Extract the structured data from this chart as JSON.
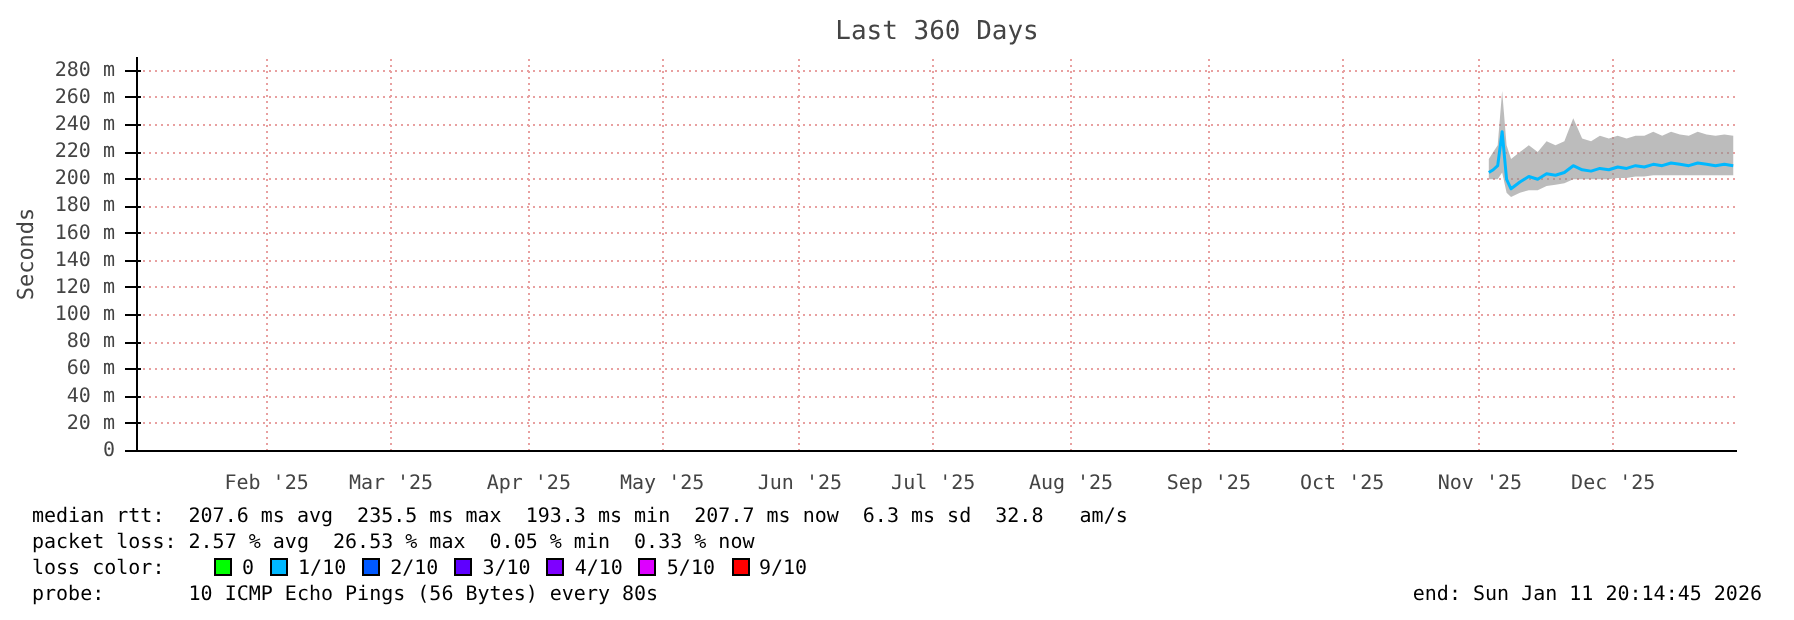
{
  "chart_data": {
    "type": "line",
    "title": "Last 360 Days",
    "ylabel": "Seconds",
    "xlim": [
      "2025-01-16T20:14",
      "2026-01-11T20:14"
    ],
    "xticks": [
      {
        "value": "2025-02-15",
        "label": "Feb '25"
      },
      {
        "value": "2025-03-15",
        "label": "Mar '25"
      },
      {
        "value": "2025-04-15",
        "label": "Apr '25"
      },
      {
        "value": "2025-05-15",
        "label": "May '25"
      },
      {
        "value": "2025-06-15",
        "label": "Jun '25"
      },
      {
        "value": "2025-07-15",
        "label": "Jul '25"
      },
      {
        "value": "2025-08-15",
        "label": "Aug '25"
      },
      {
        "value": "2025-09-15",
        "label": "Sep '25"
      },
      {
        "value": "2025-10-15",
        "label": "Oct '25"
      },
      {
        "value": "2025-11-15",
        "label": "Nov '25"
      },
      {
        "value": "2025-12-15",
        "label": "Dec '25"
      }
    ],
    "ylim": [
      0,
      290
    ],
    "yticks": [
      0,
      {
        "value": 20,
        "label": "20 m"
      },
      {
        "value": 40,
        "label": "40 m"
      },
      {
        "value": 60,
        "label": "60 m"
      },
      {
        "value": 80,
        "label": "80 m"
      },
      {
        "value": 100,
        "label": "100 m"
      },
      {
        "value": 120,
        "label": "120 m"
      },
      {
        "value": 140,
        "label": "140 m"
      },
      {
        "value": 160,
        "label": "160 m"
      },
      {
        "value": 180,
        "label": "180 m"
      },
      {
        "value": 200,
        "label": "200 m"
      },
      {
        "value": 220,
        "label": "220 m"
      },
      {
        "value": 240,
        "label": "240 m"
      },
      {
        "value": 260,
        "label": "260 m"
      },
      {
        "value": 280,
        "label": "280 m"
      }
    ],
    "grid": true,
    "legend": "bottom",
    "legend_title": "loss color:",
    "x": [
      "2025-11-17",
      "2025-11-18",
      "2025-11-19",
      "2025-11-20",
      "2025-11-21",
      "2025-11-22",
      "2025-11-24",
      "2025-11-26",
      "2025-11-28",
      "2025-11-30",
      "2025-12-02",
      "2025-12-04",
      "2025-12-06",
      "2025-12-08",
      "2025-12-10",
      "2025-12-12",
      "2025-12-14",
      "2025-12-16",
      "2025-12-18",
      "2025-12-20",
      "2025-12-22",
      "2025-12-24",
      "2025-12-26",
      "2025-12-28",
      "2025-12-30",
      "2026-01-01",
      "2026-01-03",
      "2026-01-05",
      "2026-01-07",
      "2026-01-09",
      "2026-01-11"
    ],
    "series": [
      {
        "name": "0",
        "color": "#00ff00",
        "values": [
          null,
          null,
          null,
          null,
          null,
          null,
          null,
          null,
          null,
          null,
          null,
          null,
          null,
          null,
          null,
          null,
          null,
          null,
          null,
          null,
          null,
          null,
          null,
          null,
          null,
          null,
          null,
          null,
          null,
          null,
          null
        ]
      },
      {
        "name": "1/10",
        "color": "#00b8ff",
        "values": [
          205,
          207,
          210,
          235,
          200,
          193,
          198,
          202,
          200,
          204,
          203,
          205,
          210,
          207,
          206,
          208,
          207,
          209,
          208,
          210,
          209,
          211,
          210,
          212,
          211,
          210,
          212,
          211,
          210,
          211,
          210
        ],
        "lower": [
          200,
          200,
          200,
          205,
          190,
          187,
          190,
          192,
          192,
          195,
          196,
          197,
          200,
          200,
          200,
          200,
          200,
          201,
          201,
          202,
          202,
          203,
          203,
          203,
          203,
          203,
          203,
          203,
          203,
          203,
          203
        ],
        "upper": [
          215,
          220,
          225,
          265,
          225,
          215,
          220,
          225,
          220,
          228,
          225,
          228,
          245,
          230,
          228,
          232,
          230,
          232,
          230,
          232,
          232,
          235,
          232,
          235,
          233,
          232,
          235,
          233,
          232,
          233,
          232
        ]
      },
      {
        "name": "2/10",
        "color": "#0059ff",
        "values": [
          null,
          null,
          null,
          null,
          null,
          null,
          null,
          null,
          null,
          null,
          null,
          null,
          null,
          null,
          null,
          null,
          null,
          null,
          null,
          null,
          null,
          null,
          null,
          null,
          null,
          null,
          null,
          null,
          null,
          null,
          null
        ]
      },
      {
        "name": "3/10",
        "color": "#5e00ff",
        "values": [
          null,
          null,
          null,
          null,
          null,
          null,
          null,
          null,
          null,
          null,
          null,
          null,
          null,
          null,
          null,
          null,
          null,
          null,
          null,
          null,
          null,
          null,
          null,
          null,
          null,
          null,
          null,
          null,
          null,
          null,
          null
        ]
      },
      {
        "name": "4/10",
        "color": "#7e00ff",
        "values": [
          null,
          null,
          null,
          null,
          null,
          null,
          null,
          null,
          null,
          null,
          null,
          null,
          null,
          null,
          null,
          null,
          null,
          null,
          null,
          null,
          null,
          null,
          null,
          null,
          null,
          null,
          null,
          null,
          null,
          null,
          null
        ]
      },
      {
        "name": "5/10",
        "color": "#dd00ff",
        "values": [
          null,
          null,
          null,
          null,
          null,
          null,
          null,
          null,
          null,
          null,
          null,
          null,
          null,
          null,
          null,
          null,
          null,
          null,
          null,
          null,
          null,
          null,
          null,
          null,
          null,
          null,
          null,
          null,
          null,
          null,
          null
        ]
      },
      {
        "name": "9/10",
        "color": "#ff0000",
        "values": [
          null,
          null,
          null,
          null,
          null,
          null,
          null,
          null,
          null,
          null,
          null,
          null,
          null,
          null,
          null,
          null,
          null,
          null,
          null,
          null,
          null,
          null,
          null,
          null,
          null,
          null,
          null,
          null,
          null,
          null,
          null
        ]
      }
    ],
    "annotations": [
      "median rtt:  207.6 ms avg  235.5 ms max  193.3 ms min  207.7 ms now  6.3 ms sd  32.8   am/s",
      "packet loss: 2.57 % avg  26.53 % max  0.05 % min  0.33 % now",
      "probe:       10 ICMP Echo Pings (56 Bytes) every 80s",
      "end: Sun Jan 11 20:14:45 2026"
    ]
  }
}
